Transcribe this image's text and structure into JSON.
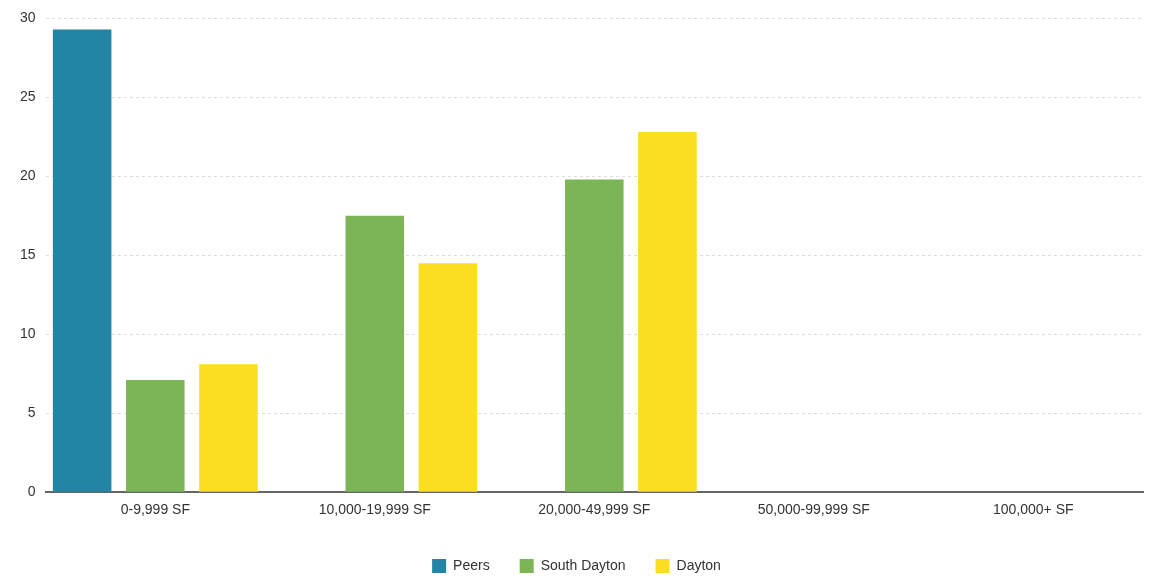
{
  "chart_data": {
    "type": "bar",
    "categories": [
      "0-9,999 SF",
      "10,000-19,999 SF",
      "20,000-49,999 SF",
      "50,000-99,999 SF",
      "100,000+ SF"
    ],
    "series": [
      {
        "name": "Peers",
        "color": "#2285a6",
        "values": [
          29.3,
          0,
          0,
          0,
          0
        ]
      },
      {
        "name": "South Dayton",
        "color": "#7cb556",
        "values": [
          7.1,
          17.5,
          19.8,
          0,
          0
        ]
      },
      {
        "name": "Dayton",
        "color": "#fbdd21",
        "values": [
          8.1,
          14.5,
          22.8,
          0,
          0
        ]
      }
    ],
    "ylim": [
      0,
      30
    ],
    "yticks": [
      0,
      5,
      10,
      15,
      20,
      25,
      30
    ],
    "grid": "y",
    "legend": "bottom"
  }
}
